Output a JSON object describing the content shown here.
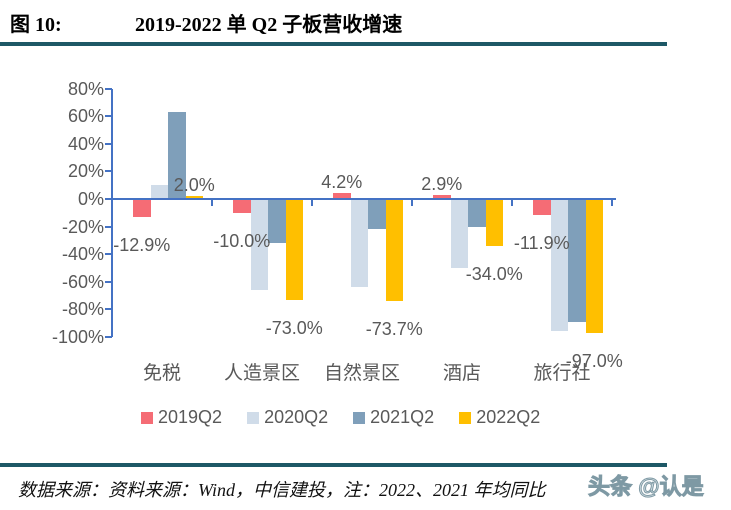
{
  "figure": {
    "label": "图 10:",
    "title": "2019-2022 单 Q2 子板营收增速"
  },
  "chart_data": {
    "type": "bar",
    "title": "2019-2022 单 Q2 子板营收增速",
    "categories": [
      "免税",
      "人造景区",
      "自然景区",
      "酒店",
      "旅行社"
    ],
    "series": [
      {
        "name": "2019Q2",
        "color": "#F56C75",
        "values": [
          -12.9,
          -10.0,
          4.2,
          2.9,
          -11.9
        ],
        "data_labels": [
          "-12.9%",
          "-10.0%",
          "4.2%",
          "2.9%",
          "-11.9%"
        ]
      },
      {
        "name": "2020Q2",
        "color": "#D0DCE9",
        "values": [
          10,
          -66,
          -64,
          -50,
          -96
        ],
        "data_labels": null
      },
      {
        "name": "2021Q2",
        "color": "#7F9FBA",
        "values": [
          63,
          -32,
          -22,
          -20,
          -89
        ],
        "data_labels": null
      },
      {
        "name": "2022Q2",
        "color": "#FFBF00",
        "values": [
          2.0,
          -73.0,
          -73.7,
          -34.0,
          -97.0
        ],
        "data_labels": [
          "2.0%",
          "-73.0%",
          "-73.7%",
          "-34.0%",
          "-97.0%"
        ]
      }
    ],
    "ylim": [
      -100,
      80
    ],
    "ytick_values": [
      80,
      60,
      40,
      20,
      0,
      -20,
      -40,
      -60,
      -80,
      -100
    ],
    "ytick_labels": [
      "80%",
      "60%",
      "40%",
      "20%",
      "0%",
      "-20%",
      "-40%",
      "-60%",
      "-80%",
      "-100%"
    ],
    "legend_entries": [
      "2019Q2",
      "2020Q2",
      "2021Q2",
      "2022Q2"
    ],
    "legend_position": "bottom",
    "grid": false,
    "axis_color": "#4472C4",
    "text_color": "#595959"
  },
  "footer": {
    "source_note": "数据来源：资料来源：Wind，中信建投，注：2022、2021 年均同比",
    "watermark": "头条 @认是"
  },
  "colors": {
    "rule": "#1D5866",
    "axis": "#4472C4",
    "chart_text": "#595959"
  }
}
